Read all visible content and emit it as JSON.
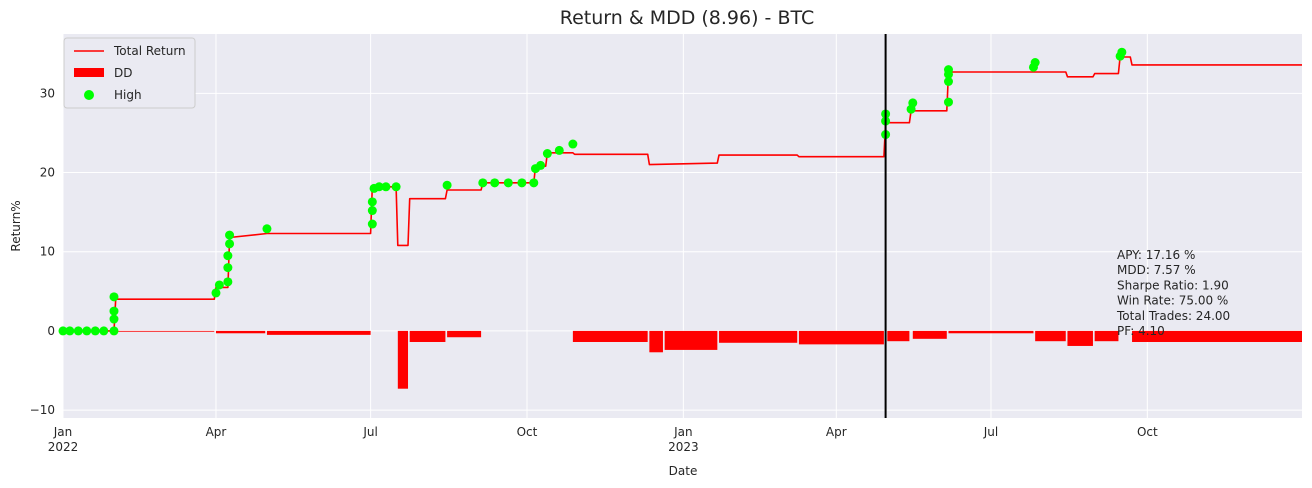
{
  "chart_data": {
    "type": "line",
    "title": "Return & MDD (8.96) - BTC",
    "xlabel": "Date",
    "ylabel": "Return%",
    "xlim": [
      "2022-01-01",
      "2023-12-31"
    ],
    "ylim": [
      -11,
      37.5
    ],
    "grid": true,
    "legend_position": "top-left",
    "x_ticks": [
      {
        "date": "2022-01-01",
        "label": "Jan",
        "sublabel": "2022"
      },
      {
        "date": "2022-04-01",
        "label": "Apr",
        "sublabel": ""
      },
      {
        "date": "2022-07-01",
        "label": "Jul",
        "sublabel": ""
      },
      {
        "date": "2022-10-01",
        "label": "Oct",
        "sublabel": ""
      },
      {
        "date": "2023-01-01",
        "label": "Jan",
        "sublabel": "2023"
      },
      {
        "date": "2023-04-01",
        "label": "Apr",
        "sublabel": ""
      },
      {
        "date": "2023-07-01",
        "label": "Jul",
        "sublabel": ""
      },
      {
        "date": "2023-10-01",
        "label": "Oct",
        "sublabel": ""
      }
    ],
    "y_ticks": [
      -10,
      0,
      10,
      20,
      30
    ],
    "vertical_marker_date": "2023-04-30",
    "series": [
      {
        "name": "Total Return",
        "kind": "step-line",
        "color": "#ff0000",
        "points": [
          [
            "2022-01-01",
            0
          ],
          [
            "2022-01-31",
            0
          ],
          [
            "2022-02-01",
            4.0
          ],
          [
            "2022-03-31",
            4.0
          ],
          [
            "2022-04-01",
            5.5
          ],
          [
            "2022-04-08",
            5.5
          ],
          [
            "2022-04-09",
            11.8
          ],
          [
            "2022-05-01",
            12.3
          ],
          [
            "2022-07-01",
            12.3
          ],
          [
            "2022-07-02",
            18.2
          ],
          [
            "2022-07-16",
            18.2
          ],
          [
            "2022-07-17",
            10.8
          ],
          [
            "2022-07-23",
            10.8
          ],
          [
            "2022-07-24",
            16.7
          ],
          [
            "2022-08-14",
            16.7
          ],
          [
            "2022-08-15",
            17.8
          ],
          [
            "2022-09-04",
            17.8
          ],
          [
            "2022-09-05",
            18.7
          ],
          [
            "2022-10-05",
            18.7
          ],
          [
            "2022-10-06",
            20.8
          ],
          [
            "2022-10-12",
            20.8
          ],
          [
            "2022-10-13",
            22.5
          ],
          [
            "2022-10-28",
            22.5
          ],
          [
            "2022-10-29",
            22.3
          ],
          [
            "2022-12-11",
            22.3
          ],
          [
            "2022-12-12",
            21.0
          ],
          [
            "2023-01-21",
            21.2
          ],
          [
            "2023-01-22",
            22.2
          ],
          [
            "2023-03-09",
            22.2
          ],
          [
            "2023-03-10",
            22.0
          ],
          [
            "2023-04-29",
            22.0
          ],
          [
            "2023-04-30",
            26.3
          ],
          [
            "2023-05-14",
            26.3
          ],
          [
            "2023-05-15",
            27.8
          ],
          [
            "2023-06-05",
            27.8
          ],
          [
            "2023-06-06",
            32.7
          ],
          [
            "2023-08-14",
            32.7
          ],
          [
            "2023-08-15",
            32.1
          ],
          [
            "2023-08-30",
            32.1
          ],
          [
            "2023-08-31",
            32.5
          ],
          [
            "2023-09-14",
            32.5
          ],
          [
            "2023-09-15",
            34.6
          ],
          [
            "2023-09-21",
            34.6
          ],
          [
            "2023-09-22",
            33.6
          ],
          [
            "2023-12-31",
            33.6
          ]
        ]
      },
      {
        "name": "DD",
        "kind": "drawdown-bars",
        "color": "#ff0000",
        "segments": [
          [
            "2022-02-01",
            "2022-03-31",
            -0.1
          ],
          [
            "2022-04-01",
            "2022-04-30",
            -0.3
          ],
          [
            "2022-05-01",
            "2022-07-01",
            -0.5
          ],
          [
            "2022-07-17",
            "2022-07-23",
            -7.3
          ],
          [
            "2022-07-24",
            "2022-08-14",
            -1.4
          ],
          [
            "2022-08-15",
            "2022-09-04",
            -0.8
          ],
          [
            "2022-10-28",
            "2022-12-11",
            -1.4
          ],
          [
            "2022-12-12",
            "2022-12-20",
            -2.7
          ],
          [
            "2022-12-21",
            "2023-01-21",
            -2.4
          ],
          [
            "2023-01-22",
            "2023-03-09",
            -1.5
          ],
          [
            "2023-03-10",
            "2023-04-29",
            -1.7
          ],
          [
            "2023-05-01",
            "2023-05-14",
            -1.3
          ],
          [
            "2023-05-16",
            "2023-06-05",
            -1.0
          ],
          [
            "2023-06-06",
            "2023-07-26",
            -0.3
          ],
          [
            "2023-07-27",
            "2023-08-14",
            -1.3
          ],
          [
            "2023-08-15",
            "2023-08-30",
            -1.9
          ],
          [
            "2023-08-31",
            "2023-09-14",
            -1.3
          ],
          [
            "2023-09-22",
            "2023-12-31",
            -1.4
          ]
        ]
      },
      {
        "name": "High",
        "kind": "scatter",
        "color": "#00ff00",
        "points": [
          [
            "2022-01-01",
            0
          ],
          [
            "2022-01-05",
            0
          ],
          [
            "2022-01-10",
            0
          ],
          [
            "2022-01-15",
            0
          ],
          [
            "2022-01-20",
            0
          ],
          [
            "2022-01-25",
            0
          ],
          [
            "2022-01-31",
            0
          ],
          [
            "2022-01-31",
            1.5
          ],
          [
            "2022-01-31",
            2.5
          ],
          [
            "2022-01-31",
            4.3
          ],
          [
            "2022-04-01",
            4.8
          ],
          [
            "2022-04-03",
            5.8
          ],
          [
            "2022-04-08",
            6.2
          ],
          [
            "2022-04-08",
            8.0
          ],
          [
            "2022-04-08",
            9.5
          ],
          [
            "2022-04-09",
            11.0
          ],
          [
            "2022-04-09",
            12.1
          ],
          [
            "2022-05-01",
            12.9
          ],
          [
            "2022-07-02",
            13.5
          ],
          [
            "2022-07-02",
            15.2
          ],
          [
            "2022-07-02",
            16.3
          ],
          [
            "2022-07-03",
            18.0
          ],
          [
            "2022-07-06",
            18.2
          ],
          [
            "2022-07-10",
            18.2
          ],
          [
            "2022-07-16",
            18.2
          ],
          [
            "2022-08-15",
            18.4
          ],
          [
            "2022-09-05",
            18.7
          ],
          [
            "2022-09-12",
            18.7
          ],
          [
            "2022-09-20",
            18.7
          ],
          [
            "2022-09-28",
            18.7
          ],
          [
            "2022-10-05",
            18.7
          ],
          [
            "2022-10-06",
            20.5
          ],
          [
            "2022-10-09",
            20.9
          ],
          [
            "2022-10-13",
            22.4
          ],
          [
            "2022-10-20",
            22.8
          ],
          [
            "2022-10-28",
            23.6
          ],
          [
            "2023-04-30",
            24.8
          ],
          [
            "2023-04-30",
            26.5
          ],
          [
            "2023-04-30",
            27.4
          ],
          [
            "2023-05-15",
            28.0
          ],
          [
            "2023-05-16",
            28.8
          ],
          [
            "2023-06-06",
            28.9
          ],
          [
            "2023-06-06",
            31.5
          ],
          [
            "2023-06-06",
            32.4
          ],
          [
            "2023-06-06",
            33.0
          ],
          [
            "2023-07-26",
            33.3
          ],
          [
            "2023-07-27",
            33.9
          ],
          [
            "2023-09-15",
            34.7
          ],
          [
            "2023-09-16",
            35.2
          ]
        ]
      }
    ],
    "stats": [
      "APY: 17.16 %",
      "MDD: 7.57 %",
      "Sharpe Ratio: 1.90",
      "Win Rate: 75.00 %",
      "Total Trades: 24.00",
      "PF: 4.10"
    ],
    "legend": [
      "Total Return",
      "DD",
      "High"
    ],
    "colors": {
      "plot_background": "#eaeaf2",
      "grid": "#ffffff",
      "return_line": "#ff0000",
      "drawdown": "#ff0000",
      "high_marker": "#00ff00",
      "marker_line": "#000000"
    }
  }
}
